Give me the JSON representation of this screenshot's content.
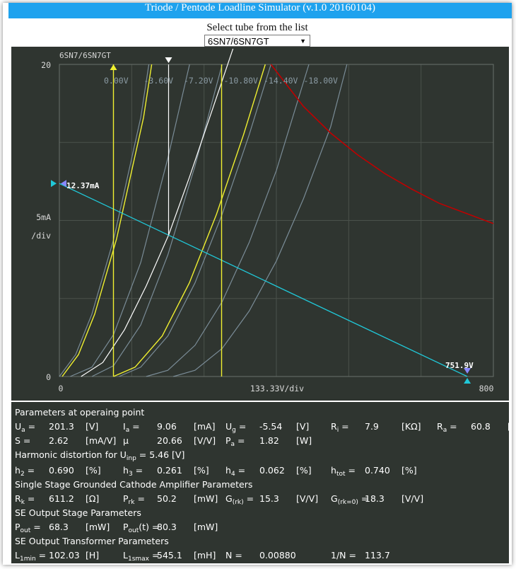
{
  "window": {
    "title": "Triode / Pentode Loadline Simulator (v.1.0 20160104)"
  },
  "selector": {
    "label": "Select tube from the list",
    "value": "6SN7/6SN7GT"
  },
  "colors": {
    "background": "#2f3530",
    "curve_gray": "#7a8c97",
    "curve_yellow": "#f0f030",
    "curve_white": "#ffffff",
    "dissipation": "#c00000",
    "loadline": "#20c8d8"
  },
  "plot": {
    "tube_label": "6SN7/6SN7GT",
    "y_top": "20",
    "y_mid_line1": "5mA",
    "y_mid_line2": "/div",
    "y_zero": "0",
    "x_zero": "0",
    "x_div": "133.33V/div",
    "x_max": "800",
    "loadline_current": "12.37mA",
    "loadline_voltage": "751.9V",
    "grid_labels": [
      "0.00V",
      "-3.60V",
      "-7.20V",
      "-10.80V",
      "-14.40V",
      "-18.00V"
    ]
  },
  "chart_data": {
    "type": "line",
    "xlabel": "133.33V/div",
    "ylabel": "5mA /div",
    "xlim": [
      0,
      800
    ],
    "ylim": [
      0,
      20
    ],
    "series": [
      {
        "name": "0.00V",
        "x": [
          0,
          30,
          60,
          100,
          150,
          165
        ],
        "y": [
          0,
          1.4,
          4.0,
          8.8,
          16.6,
          20
        ]
      },
      {
        "name": "-3.60V",
        "x": [
          20,
          60,
          100,
          150,
          200,
          240
        ],
        "y": [
          0,
          0.6,
          2.7,
          7.3,
          14.0,
          20
        ]
      },
      {
        "name": "-7.20V",
        "x": [
          60,
          100,
          150,
          200,
          250,
          300
        ],
        "y": [
          0,
          0.7,
          3.3,
          7.8,
          13.5,
          20
        ]
      },
      {
        "name": "-10.80V",
        "x": [
          110,
          150,
          200,
          250,
          300,
          350,
          390
        ],
        "y": [
          0,
          0.6,
          2.6,
          6.0,
          10.4,
          15.5,
          20
        ]
      },
      {
        "name": "-14.40V",
        "x": [
          160,
          200,
          250,
          300,
          350,
          400,
          460
        ],
        "y": [
          0,
          0.4,
          2.0,
          4.8,
          8.6,
          13.2,
          20
        ]
      },
      {
        "name": "-18.00V",
        "x": [
          210,
          250,
          300,
          350,
          400,
          450,
          500,
          530
        ],
        "y": [
          0,
          0.4,
          1.8,
          4.2,
          7.4,
          11.4,
          16.0,
          20
        ]
      },
      {
        "name": "",
        "x": [
          40,
          80,
          120,
          160,
          201.3,
          240,
          280,
          320
        ],
        "y": [
          0,
          0.9,
          3.0,
          5.8,
          9.06,
          12.8,
          16.9,
          21.0
        ]
      }
    ],
    "dissipation_curve": {
      "x": [
        390,
        450,
        500,
        550,
        600,
        650,
        700,
        800
      ],
      "y": [
        20,
        17.3,
        15.6,
        14.2,
        13.0,
        12.0,
        11.1,
        9.8
      ]
    },
    "loadline": {
      "x": [
        0,
        751.9
      ],
      "y": [
        12.37,
        0
      ]
    },
    "operating_point": {
      "x": 201.3,
      "y": 9.06
    }
  },
  "params": {
    "op_title": "Parameters at operaing point",
    "op_row1": [
      {
        "name": "U",
        "sub": "a",
        "eq": "=",
        "val": "201.3",
        "unit": "[V]"
      },
      {
        "name": "I",
        "sub": "a",
        "eq": "=",
        "val": "9.06",
        "unit": "[mA]"
      },
      {
        "name": "U",
        "sub": "g",
        "eq": "=",
        "val": "-5.54",
        "unit": "[V]"
      },
      {
        "name": "R",
        "sub": "i",
        "eq": "=",
        "val": "7.9",
        "unit": "[KΩ]"
      },
      {
        "name": "R",
        "sub": "a",
        "eq": "=",
        "val": "60.8",
        "unit": "[KΩ]"
      }
    ],
    "op_row2": [
      {
        "name": "S",
        "sub": "",
        "eq": "=",
        "val": "2.62",
        "unit": "[mA/V]"
      },
      {
        "name": "μ",
        "sub": "",
        "eq": "",
        "val": "20.66",
        "unit": "[V/V]"
      },
      {
        "name": "P",
        "sub": "a",
        "eq": "=",
        "val": "1.82",
        "unit": "[W]"
      }
    ],
    "hd_title": "Harmonic distortion for U",
    "hd_title_sub": "inp",
    "hd_title_tail": "= 5.46 [V]",
    "hd_row": [
      {
        "name": "h",
        "sub": "2",
        "eq": "=",
        "val": "0.690",
        "unit": "[%]"
      },
      {
        "name": "h",
        "sub": "3",
        "eq": "=",
        "val": "0.261",
        "unit": "[%]"
      },
      {
        "name": "h",
        "sub": "4",
        "eq": "=",
        "val": "0.062",
        "unit": "[%]"
      },
      {
        "name": "h",
        "sub": "tot",
        "eq": "=",
        "val": "0.740",
        "unit": "[%]"
      }
    ],
    "ss_title": "Single Stage Grounded Cathode Amplifier Parameters",
    "ss_row": [
      {
        "name": "R",
        "sub": "k",
        "eq": "=",
        "val": "611.2",
        "unit": "[Ω]"
      },
      {
        "name": "P",
        "sub": "rk",
        "eq": "=",
        "val": "50.2",
        "unit": "[mW]"
      },
      {
        "name": "G",
        "sub": "(rk)",
        "eq": "=",
        "val": "15.3",
        "unit": "[V/V]"
      },
      {
        "name": "G",
        "sub": "(rk=0)",
        "eq": "=",
        "val": "18.3",
        "unit": "[V/V]"
      }
    ],
    "se_title": "SE Output Stage Parameters",
    "se_row": [
      {
        "name": "P",
        "sub": "out",
        "eq": "=",
        "val": "68.3",
        "unit": "[mW]"
      },
      {
        "name": "P",
        "sub": "out",
        "tail": "(t)",
        "eq": "=",
        "val": "80.3",
        "unit": "[mW]"
      }
    ],
    "tr_title": "SE Output Transformer Parameters",
    "tr_row": [
      {
        "name": "L",
        "sub": "1min",
        "eq": "=",
        "val": "102.03",
        "unit": "[H]"
      },
      {
        "name": "L",
        "sub": "1smax",
        "eq": "=",
        "val": "545.1",
        "unit": "[mH]"
      },
      {
        "name": "N",
        "sub": "",
        "eq": "=",
        "val": "0.00880",
        "unit": ""
      },
      {
        "name": "1/N",
        "sub": "",
        "eq": "=",
        "val": "113.7",
        "unit": ""
      }
    ]
  }
}
